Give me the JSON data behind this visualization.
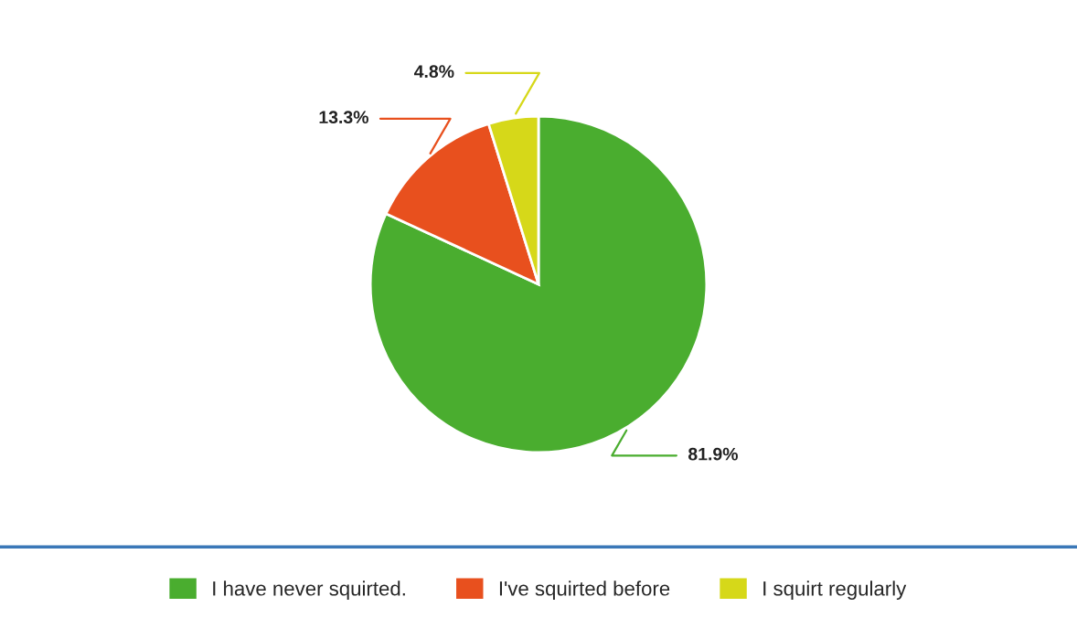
{
  "chart_data": {
    "type": "pie",
    "categories": [
      "I have never squirted.",
      "I've squirted before",
      "I squirt regularly"
    ],
    "values": [
      81.9,
      13.3,
      4.8
    ],
    "colors": [
      "#4aad2f",
      "#e8501e",
      "#d6d819"
    ],
    "value_labels": [
      "81.9%",
      "13.3%",
      "4.8%"
    ],
    "legend": "bottom"
  }
}
